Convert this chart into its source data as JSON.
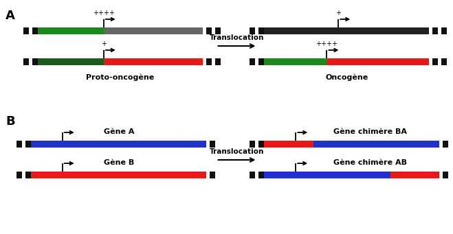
{
  "bg_color": "#ffffff",
  "label_A": "A",
  "label_B": "B",
  "translocation_text": "Translocation",
  "proto_label": "Proto-oncogène",
  "onco_label": "Oncogène",
  "gene_a_label": "Gène A",
  "gene_b_label": "Gène B",
  "chimere_ba_label": "Gène chimère BA",
  "chimere_ab_label": "Gène chimère AB",
  "colors": {
    "green": "#1a8a1a",
    "dark_green": "#1a5c1a",
    "gray": "#666666",
    "red": "#e81919",
    "blue": "#2030cc",
    "black": "#222222",
    "square": "#111111"
  },
  "figsize": [
    6.59,
    3.41
  ],
  "dpi": 100
}
